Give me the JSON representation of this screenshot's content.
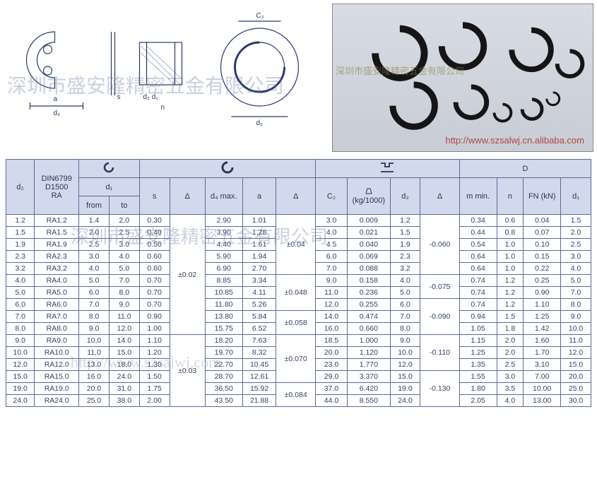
{
  "photo_url": "http://www.szsalwj.cn.alibaba.com",
  "watermark_cn": "深圳市盛安隆精密五金有限公司",
  "watermark_url": "http://www.szsalwj.com",
  "header": {
    "standard": "DIN6799\nD1500\nRA",
    "d2": "d₂",
    "d1": "d₁",
    "from": "from",
    "to": "to",
    "s": "s",
    "delta": "Δ",
    "d4max": "d₄ max.",
    "a": "a",
    "C2": "C₂",
    "weight": "(kg/1000)",
    "m_min": "m min.",
    "n": "n",
    "FN": "FN (kN)",
    "D": "D"
  },
  "delta_vals": {
    "c1": "±0.02",
    "c2": "±0.04",
    "c3": "±0.048",
    "c4": "±0.058",
    "c5": "±0.070",
    "c6": "±0.084",
    "c7": "±0.03",
    "d1": "-0.060",
    "d2": "-0.075",
    "d3": "-0.090",
    "d4": "-0.110",
    "d5": "-0.130"
  },
  "rows": [
    {
      "d2": "1.2",
      "ra": "RA1.2",
      "from": "1.4",
      "to": "2.0",
      "s": "0.30",
      "d4": "2.90",
      "a": "1.01",
      "C2": "3.0",
      "kg": "0.009",
      "dd2": "1.2",
      "m": "0.34",
      "n": "0.6",
      "fn": "0.04",
      "dd1": "1.5"
    },
    {
      "d2": "1.5",
      "ra": "RA1.5",
      "from": "2.0",
      "to": "2.5",
      "s": "0.40",
      "d4": "3.90",
      "a": "1,28",
      "C2": "4.0",
      "kg": "0.021",
      "dd2": "1.5",
      "m": "0.44",
      "n": "0.8",
      "fn": "0.07",
      "dd1": "2.0"
    },
    {
      "d2": "1.9",
      "ra": "RA1.9",
      "from": "2.5",
      "to": "3.0",
      "s": "0.50",
      "d4": "4.40",
      "a": "1.61",
      "C2": "4.5",
      "kg": "0.040",
      "dd2": "1.9",
      "m": "0.54",
      "n": "1.0",
      "fn": "0.10",
      "dd1": "2.5"
    },
    {
      "d2": "2.3",
      "ra": "RA2.3",
      "from": "3.0",
      "to": "4.0",
      "s": "0.60",
      "d4": "5.90",
      "a": "1.94",
      "C2": "6.0",
      "kg": "0.069",
      "dd2": "2.3",
      "m": "0.64",
      "n": "1.0",
      "fn": "0.15",
      "dd1": "3.0"
    },
    {
      "d2": "3.2",
      "ra": "RA3.2",
      "from": "4.0",
      "to": "5.0",
      "s": "0.60",
      "d4": "6.90",
      "a": "2.70",
      "C2": "7.0",
      "kg": "0.088",
      "dd2": "3.2",
      "m": "0.64",
      "n": "1.0",
      "fn": "0.22",
      "dd1": "4.0"
    },
    {
      "d2": "4.0",
      "ra": "RA4.0",
      "from": "5.0",
      "to": "7.0",
      "s": "0.70",
      "d4": "8.85",
      "a": "3.34",
      "C2": "9.0",
      "kg": "0.158",
      "dd2": "4.0",
      "m": "0.74",
      "n": "1.2",
      "fn": "0.25",
      "dd1": "5.0"
    },
    {
      "d2": "5.0",
      "ra": "RA5.0",
      "from": "6.0",
      "to": "8.0",
      "s": "0.70",
      "d4": "10.85",
      "a": "4.11",
      "C2": "11.0",
      "kg": "0.236",
      "dd2": "5.0",
      "m": "0.74",
      "n": "1.2",
      "fn": "0.90",
      "dd1": "7.0"
    },
    {
      "d2": "6.0",
      "ra": "RA6.0",
      "from": "7.0",
      "to": "9.0",
      "s": "0.70",
      "d4": "11.80",
      "a": "5.26",
      "C2": "12.0",
      "kg": "0.255",
      "dd2": "6.0",
      "m": "0.74",
      "n": "1.2",
      "fn": "1.10",
      "dd1": "8.0"
    },
    {
      "d2": "7.0",
      "ra": "RA7.0",
      "from": "8.0",
      "to": "11.0",
      "s": "0.90",
      "d4": "13.80",
      "a": "5.84",
      "C2": "14.0",
      "kg": "0.474",
      "dd2": "7.0",
      "m": "0.94",
      "n": "1.5",
      "fn": "1.25",
      "dd1": "9.0"
    },
    {
      "d2": "8.0",
      "ra": "RA8.0",
      "from": "9.0",
      "to": "12.0",
      "s": "1.00",
      "d4": "15.75",
      "a": "6.52",
      "C2": "16.0",
      "kg": "0.660",
      "dd2": "8.0",
      "m": "1.05",
      "n": "1.8",
      "fn": "1.42",
      "dd1": "10.0"
    },
    {
      "d2": "9.0",
      "ra": "RA9.0",
      "from": "10,0",
      "to": "14.0",
      "s": "1.10",
      "d4": "18.20",
      "a": "7.63",
      "C2": "18.5",
      "kg": "1.000",
      "dd2": "9.0",
      "m": "1.15",
      "n": "2.0",
      "fn": "1.60",
      "dd1": "11.0"
    },
    {
      "d2": "10.0",
      "ra": "RA10.0",
      "from": "11,0",
      "to": "15.0",
      "s": "1.20",
      "d4": "19.70",
      "a": "8,32",
      "C2": "20.0",
      "kg": "1.120",
      "dd2": "10.0",
      "m": "1.25",
      "n": "2.0",
      "fn": "1.70",
      "dd1": "12.0"
    },
    {
      "d2": "12.0",
      "ra": "RA12.0",
      "from": "13.0",
      "to": "18.0",
      "s": "1.30",
      "d4": "22.70",
      "a": "10.45",
      "C2": "23.0",
      "kg": "1.770",
      "dd2": "12.0",
      "m": "1.35",
      "n": "2.5",
      "fn": "3.10",
      "dd1": "15.0"
    },
    {
      "d2": "15.0",
      "ra": "RA15.0",
      "from": "16.0",
      "to": "24.0",
      "s": "1.50",
      "d4": "28.70",
      "a": "12.61",
      "C2": "29.0",
      "kg": "3.370",
      "dd2": "15.0",
      "m": "1.55",
      "n": "3.0",
      "fn": "7.00",
      "dd1": "20.0"
    },
    {
      "d2": "19.0",
      "ra": "RA19.0",
      "from": "20.0",
      "to": "31.0",
      "s": "1.75",
      "d4": "36.50",
      "a": "15.92",
      "C2": "37.0",
      "kg": "6.420",
      "dd2": "19.0",
      "m": "1.80",
      "n": "3.5",
      "fn": "10.00",
      "dd1": "25.0"
    },
    {
      "d2": "24.0",
      "ra": "RA24.0",
      "from": "25.0",
      "to": "38.0",
      "s": "2.00",
      "d4": "43.50",
      "a": "21.88",
      "C2": "44.0",
      "kg": "8.550",
      "dd2": "24.0",
      "m": "2.05",
      "n": "4.0",
      "fn": "13.00",
      "dd1": "30.0"
    }
  ]
}
